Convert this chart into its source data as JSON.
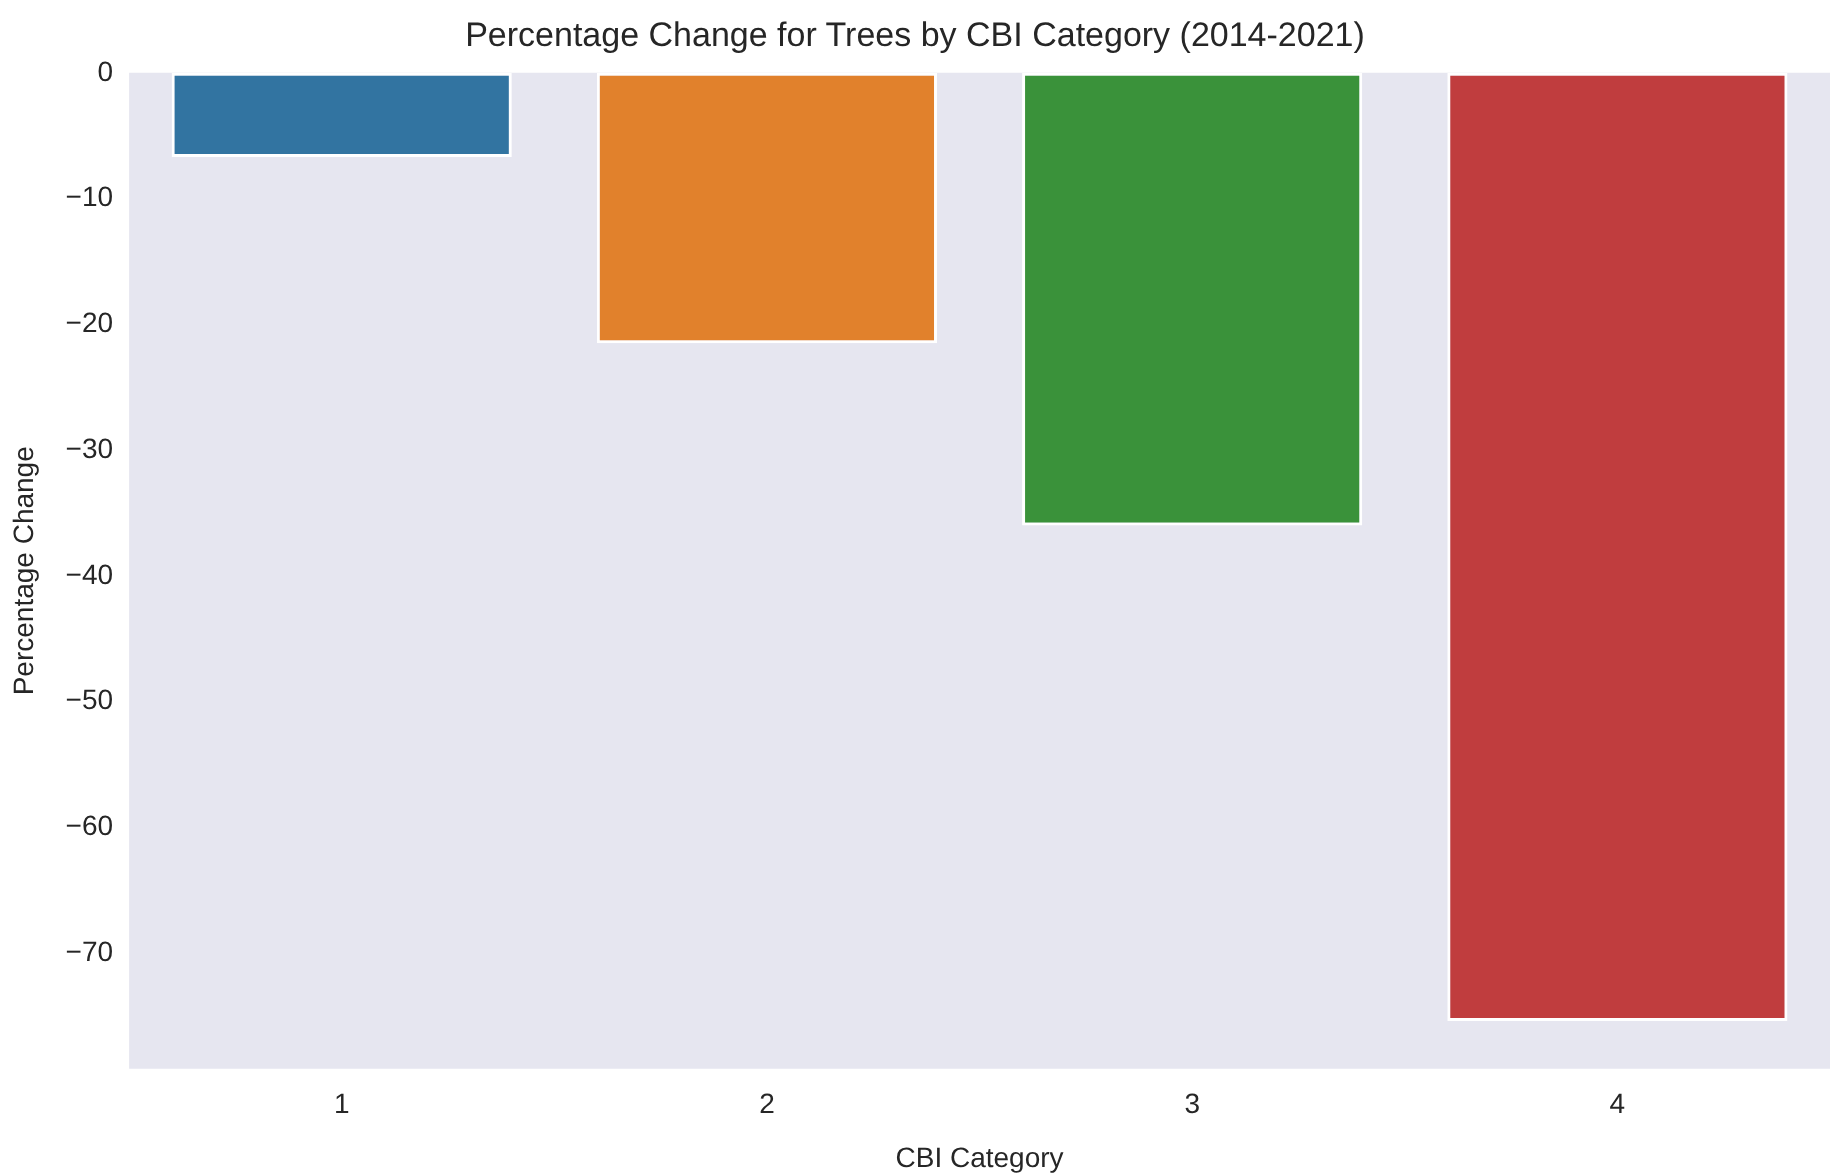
{
  "chart_data": {
    "type": "bar",
    "title": "Percentage Change for Trees by CBI Category (2014-2021)",
    "xlabel": "CBI Category",
    "ylabel": "Percentage Change",
    "categories": [
      "1",
      "2",
      "3",
      "4"
    ],
    "values": [
      -6.7,
      -21.5,
      -36.0,
      -75.4
    ],
    "colors": [
      "#3274a1",
      "#e1812c",
      "#3a923a",
      "#c03d3e"
    ],
    "ylim": [
      -79.2,
      0
    ],
    "yticks": [
      0,
      -10,
      -20,
      -30,
      -40,
      -50,
      -60,
      -70
    ],
    "grid": false,
    "legend": false
  }
}
